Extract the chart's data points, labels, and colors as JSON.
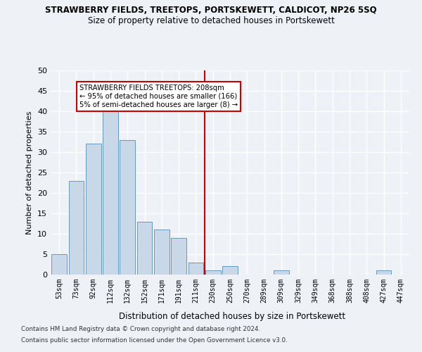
{
  "title": "STRAWBERRY FIELDS, TREETOPS, PORTSKEWETT, CALDICOT, NP26 5SQ",
  "subtitle": "Size of property relative to detached houses in Portskewett",
  "xlabel": "Distribution of detached houses by size in Portskewett",
  "ylabel": "Number of detached properties",
  "bar_color": "#c8d8e8",
  "bar_edge_color": "#6699bb",
  "categories": [
    "53sqm",
    "73sqm",
    "92sqm",
    "112sqm",
    "132sqm",
    "152sqm",
    "171sqm",
    "191sqm",
    "211sqm",
    "230sqm",
    "250sqm",
    "270sqm",
    "289sqm",
    "309sqm",
    "329sqm",
    "349sqm",
    "368sqm",
    "388sqm",
    "408sqm",
    "427sqm",
    "447sqm"
  ],
  "values": [
    5,
    23,
    32,
    41,
    33,
    13,
    11,
    9,
    3,
    1,
    2,
    0,
    0,
    1,
    0,
    0,
    0,
    0,
    0,
    1,
    0
  ],
  "ylim": [
    0,
    50
  ],
  "yticks": [
    0,
    5,
    10,
    15,
    20,
    25,
    30,
    35,
    40,
    45,
    50
  ],
  "vline_x": 8.5,
  "vline_color": "#cc0000",
  "annotation_text": "STRAWBERRY FIELDS TREETOPS: 208sqm\n← 95% of detached houses are smaller (166)\n5% of semi-detached houses are larger (8) →",
  "annotation_box_color": "#cc0000",
  "footer_line1": "Contains HM Land Registry data © Crown copyright and database right 2024.",
  "footer_line2": "Contains public sector information licensed under the Open Government Licence v3.0.",
  "background_color": "#eef2f7",
  "grid_color": "#ffffff"
}
